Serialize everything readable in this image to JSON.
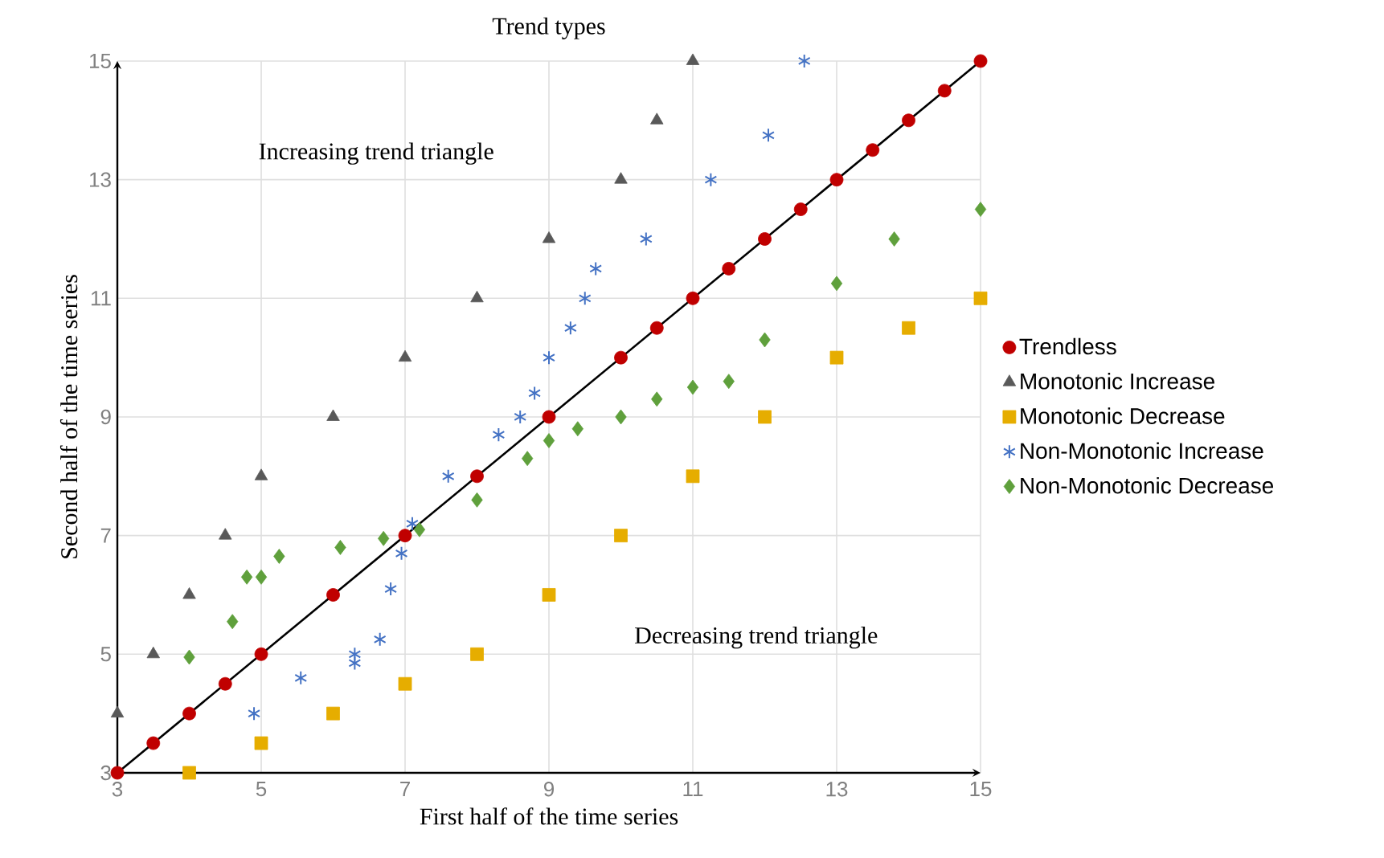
{
  "chart_data": {
    "type": "scatter",
    "title": "Trend types",
    "xlabel": "First half of the time series",
    "ylabel": "Second half of the time series",
    "annotations": [
      "Increasing trend triangle",
      "Decreasing trend triangle"
    ],
    "xlim": [
      3,
      15
    ],
    "ylim": [
      3,
      15
    ],
    "xticks": [
      3,
      5,
      7,
      9,
      11,
      13,
      15
    ],
    "yticks": [
      3,
      5,
      7,
      9,
      11,
      13,
      15
    ],
    "grid": true,
    "legend": "right",
    "series": [
      {
        "type": "line",
        "color": "#000000",
        "marker": "none",
        "x": [
          3,
          15
        ],
        "values": [
          3,
          15
        ]
      },
      {
        "name": "Trendless",
        "color": "#c00000",
        "marker": "circle",
        "x": [
          3,
          3.5,
          4,
          4.5,
          5,
          6,
          7,
          8,
          9,
          10,
          10.5,
          11,
          11.5,
          12,
          12.5,
          13,
          13.5,
          14,
          14.5,
          15
        ],
        "values": [
          3,
          3.5,
          4,
          4.5,
          5,
          6,
          7,
          8,
          9,
          10,
          10.5,
          11,
          11.5,
          12,
          12.5,
          13,
          13.5,
          14,
          14.5,
          15
        ]
      },
      {
        "name": "Monotonic Increase",
        "color": "#595959",
        "marker": "triangle",
        "x": [
          3,
          3.5,
          4,
          4.5,
          5,
          6,
          7,
          8,
          9,
          10,
          10.5,
          11
        ],
        "values": [
          4,
          5,
          6,
          7,
          8,
          9,
          10,
          11,
          12,
          13,
          14,
          15
        ]
      },
      {
        "name": "Monotonic Decrease",
        "color": "#e6ad00",
        "marker": "square",
        "x": [
          4,
          5,
          6,
          7,
          8,
          9,
          10,
          11,
          12,
          13,
          14,
          15
        ],
        "values": [
          3,
          3.5,
          4,
          4.5,
          5,
          6,
          7,
          8,
          9,
          10,
          10.5,
          11
        ]
      },
      {
        "name": "Non-Monotonic Increase",
        "color": "#4472c4",
        "marker": "cross",
        "x": [
          4.9,
          5.55,
          6.3,
          6.3,
          6.65,
          6.8,
          6.95,
          7.1,
          7.6,
          8.3,
          8.6,
          8.8,
          9,
          9.3,
          9.5,
          9.65,
          10.35,
          11.25,
          12.05,
          12.55
        ],
        "values": [
          4,
          4.6,
          4.85,
          5,
          5.25,
          6.1,
          6.7,
          7.2,
          8,
          8.7,
          9,
          9.4,
          10,
          10.5,
          11,
          11.5,
          12,
          13,
          13.75,
          15
        ]
      },
      {
        "name": "Non-Monotonic Decrease",
        "color": "#5fa03c",
        "marker": "diamond",
        "x": [
          4,
          4.6,
          4.8,
          5,
          5.25,
          6.1,
          6.7,
          7.2,
          8,
          8.7,
          9,
          9.4,
          10,
          10.5,
          11,
          11.5,
          12,
          13,
          13.8,
          15
        ],
        "values": [
          4.95,
          5.55,
          6.3,
          6.3,
          6.65,
          6.8,
          6.95,
          7.1,
          7.6,
          8.3,
          8.6,
          8.8,
          9,
          9.3,
          9.5,
          9.6,
          10.3,
          11.25,
          12,
          12.5
        ]
      }
    ]
  }
}
